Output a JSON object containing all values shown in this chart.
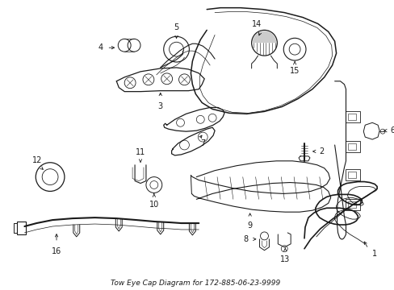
{
  "title": "Tow Eye Cap Diagram for 172-885-06-23-9999",
  "background_color": "#ffffff",
  "line_color": "#1a1a1a",
  "fig_width": 4.89,
  "fig_height": 3.6,
  "dpi": 100
}
